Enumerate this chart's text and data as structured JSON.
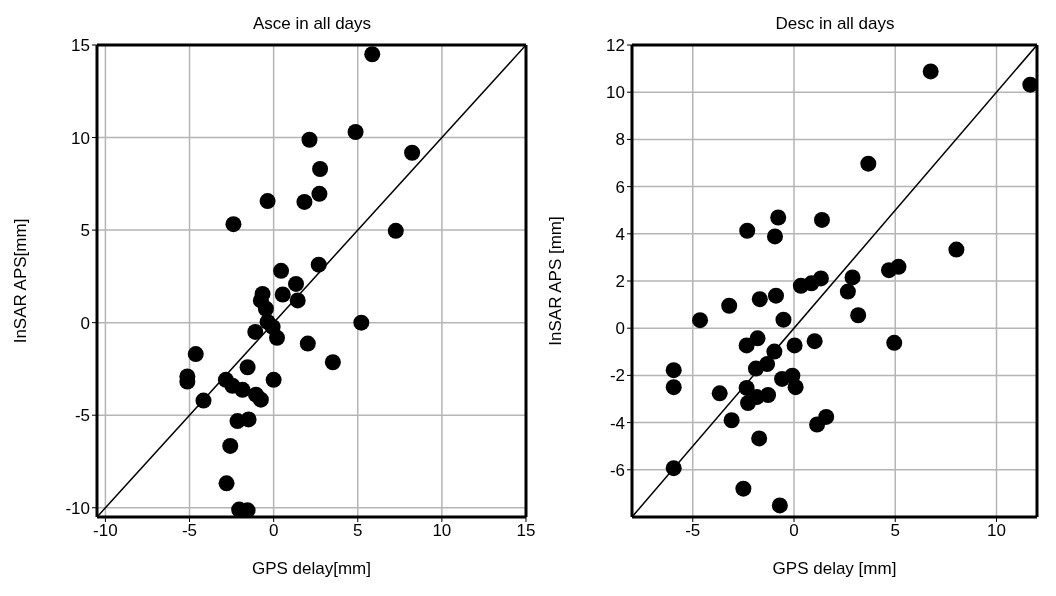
{
  "chart_data": [
    {
      "type": "scatter",
      "title": "Asce in all days",
      "xlabel": "GPS delay[mm]",
      "ylabel": "InSAR APS[mm]",
      "xlim": [
        -10.5,
        15
      ],
      "ylim": [
        -10.5,
        15
      ],
      "xticks": [
        -10,
        -5,
        0,
        5,
        10,
        15
      ],
      "yticks": [
        -10,
        -5,
        0,
        5,
        10,
        15
      ],
      "grid": true,
      "marker": "circle",
      "series": [
        {
          "type": "scatter",
          "color": "#000000",
          "x": [
            5.86,
            4.87,
            2.13,
            8.23,
            2.76,
            2.72,
            -0.36,
            1.83,
            -2.39,
            7.26,
            0.44,
            2.68,
            1.33,
            -0.66,
            0.54,
            -0.76,
            1.43,
            -0.46,
            -0.36,
            -0.06,
            -1.09,
            0.2,
            2.03,
            5.21,
            -4.63,
            3.52,
            -5.13,
            -5.13,
            -1.55,
            -2.84,
            0,
            -2.45,
            -1.85,
            -1.05,
            -0.76,
            -4.17,
            -2.15,
            -1.49,
            -2.58,
            -2.8,
            -2.05,
            -1.55
          ],
          "values": [
            14.5,
            10.3,
            9.88,
            9.18,
            8.3,
            6.96,
            6.57,
            6.52,
            5.32,
            4.96,
            2.8,
            3.13,
            2.09,
            1.55,
            1.52,
            1.2,
            1.2,
            0.75,
            0.04,
            -0.23,
            -0.5,
            -0.82,
            -1.13,
            0,
            -1.7,
            -2.14,
            -2.91,
            -3.18,
            -2.41,
            -3.09,
            -3.09,
            -3.41,
            -3.63,
            -3.89,
            -4.16,
            -4.21,
            -5.32,
            -5.23,
            -6.66,
            -8.68,
            -10.1,
            -10.14
          ]
        },
        {
          "type": "line",
          "color": "#000000",
          "marker": "none",
          "x": [
            -10.5,
            15
          ],
          "values": [
            -10.5,
            15
          ]
        }
      ]
    },
    {
      "type": "scatter",
      "title": "Desc in all days",
      "xlabel": "GPS delay [mm]",
      "ylabel": "InSAR APS [mm]",
      "xlim": [
        -8,
        12
      ],
      "ylim": [
        -8,
        12
      ],
      "xticks": [
        -5,
        0,
        5,
        10
      ],
      "yticks": [
        -6,
        -4,
        -2,
        0,
        2,
        4,
        6,
        8,
        10,
        12
      ],
      "grid": true,
      "marker": "circle",
      "series": [
        {
          "type": "scatter",
          "color": "#000000",
          "x": [
            6.75,
            11.67,
            3.67,
            -2.31,
            -0.78,
            -0.94,
            1.38,
            8.02,
            4.69,
            5.16,
            2.89,
            1.33,
            0.86,
            0.34,
            2.66,
            -0.89,
            -1.69,
            -3.2,
            3.17,
            -4.64,
            -0.52,
            -2.34,
            -1.8,
            0.03,
            1.02,
            4.95,
            -0.97,
            -1.33,
            -1.88,
            -5.94,
            -5.94,
            -0.59,
            -0.08,
            0.08,
            -2.34,
            -3.67,
            -1.84,
            -1.28,
            -2.27,
            -3.08,
            1.14,
            1.59,
            -1.72,
            -5.94,
            -2.5,
            -0.7
          ],
          "values": [
            10.88,
            10.32,
            6.97,
            4.13,
            4.69,
            3.89,
            4.59,
            3.33,
            2.46,
            2.6,
            2.15,
            2.11,
            1.9,
            1.8,
            1.55,
            1.38,
            1.23,
            0.95,
            0.55,
            0.34,
            0.36,
            -0.73,
            -0.43,
            -0.73,
            -0.55,
            -0.62,
            -0.99,
            -1.52,
            -1.71,
            -1.78,
            -2.5,
            -2.15,
            -2.01,
            -2.5,
            -2.53,
            -2.76,
            -2.92,
            -2.83,
            -3.17,
            -3.9,
            -4.08,
            -3.76,
            -4.67,
            -5.93,
            -6.8,
            -7.51
          ]
        },
        {
          "type": "line",
          "color": "#000000",
          "marker": "none",
          "x": [
            -8,
            12
          ],
          "values": [
            -8,
            12
          ]
        }
      ]
    }
  ]
}
